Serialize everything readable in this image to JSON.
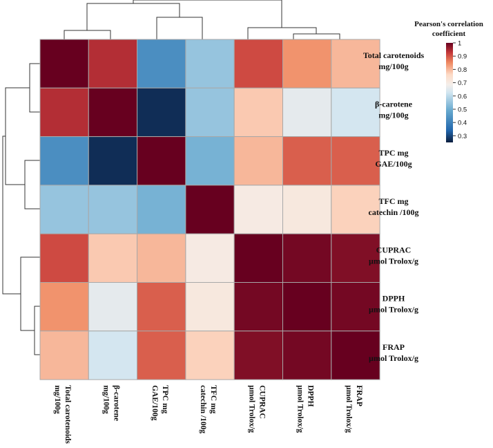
{
  "chart_data": {
    "type": "heatmap",
    "variant": "clustered correlation heatmap",
    "colorbar_title_lines": [
      "Pearson's correlation",
      "coefficient"
    ],
    "row_labels": [
      [
        "Total carotenoids",
        "mg/100g"
      ],
      [
        "β-carotene",
        "mg/100g"
      ],
      [
        "TPC mg",
        "GAE/100g"
      ],
      [
        "TFC mg",
        "catechin /100g"
      ],
      [
        "CUPRAC",
        "µmol Trolox/g"
      ],
      [
        "DPPH",
        "µmol Trolox/g"
      ],
      [
        "FRAP",
        "µmol Trolox/g"
      ]
    ],
    "col_labels": [
      [
        "Total carotenoids",
        "mg/100g"
      ],
      [
        "β-carotene",
        "mg/100g"
      ],
      [
        "TPC mg",
        "GAE/100g"
      ],
      [
        "TFC mg",
        "catechin /100g"
      ],
      [
        "CUPRAC",
        "µmol Trolox/g"
      ],
      [
        "DPPH",
        "µmol Trolox/g"
      ],
      [
        "FRAP",
        "µmol Trolox/g"
      ]
    ],
    "matrix": [
      [
        1.0,
        0.94,
        0.43,
        0.55,
        0.91,
        0.84,
        0.8
      ],
      [
        0.94,
        1.0,
        0.27,
        0.55,
        0.78,
        0.66,
        0.63
      ],
      [
        0.43,
        0.27,
        1.0,
        0.51,
        0.8,
        0.89,
        0.89
      ],
      [
        0.55,
        0.55,
        0.51,
        1.0,
        0.7,
        0.71,
        0.77
      ],
      [
        0.91,
        0.78,
        0.8,
        0.7,
        1.0,
        0.99,
        0.98
      ],
      [
        0.84,
        0.66,
        0.89,
        0.71,
        0.99,
        1.0,
        0.99
      ],
      [
        0.8,
        0.63,
        0.89,
        0.77,
        0.98,
        0.99,
        1.0
      ]
    ],
    "colorbar_range": [
      0.25,
      1.0
    ],
    "colorbar_ticks": [
      "1",
      "0.9",
      "0.8",
      "0.7",
      "0.6",
      "0.5",
      "0.4",
      "0.3"
    ],
    "colorbar_tick_values": [
      1.0,
      0.9,
      0.8,
      0.7,
      0.6,
      0.5,
      0.4,
      0.3
    ],
    "colormap": "RdBu_r",
    "colormap_stops": [
      [
        0.0,
        "#0b1d3d"
      ],
      [
        0.12,
        "#2166ac"
      ],
      [
        0.32,
        "#67a9cf"
      ],
      [
        0.5,
        "#d1e5f0"
      ],
      [
        0.58,
        "#f4eeea"
      ],
      [
        0.68,
        "#fddbc7"
      ],
      [
        0.8,
        "#ef8a62"
      ],
      [
        0.9,
        "#c63a3a"
      ],
      [
        1.0,
        "#67001f"
      ]
    ],
    "row_dendrogram": "left",
    "col_dendrogram": "top"
  }
}
